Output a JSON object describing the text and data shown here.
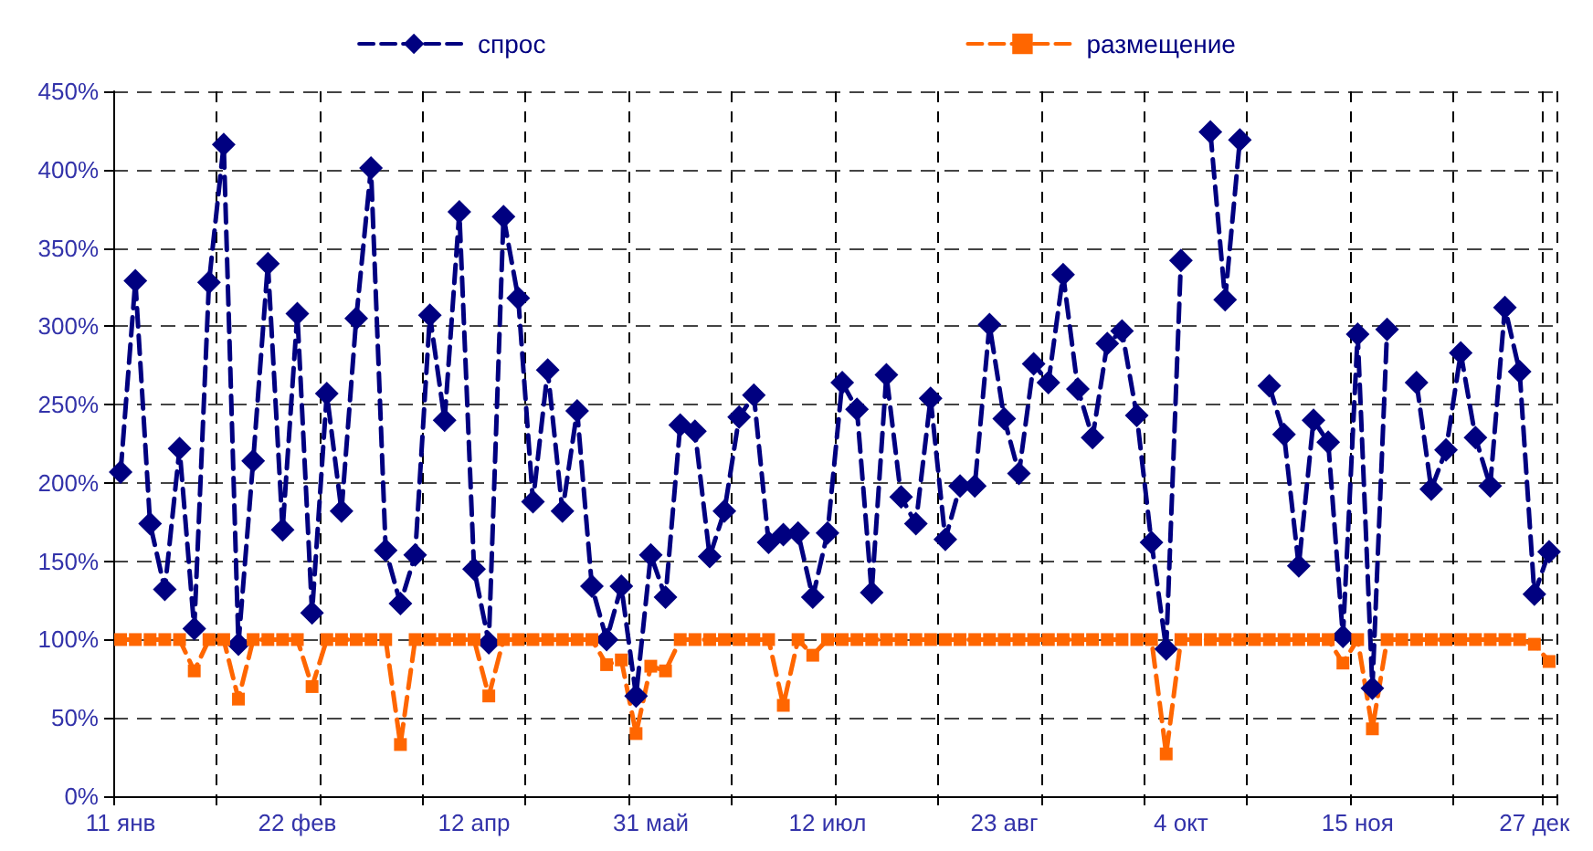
{
  "chart_data": {
    "type": "line",
    "categories": [
      "11 янв",
      null,
      null,
      null,
      null,
      null,
      null,
      null,
      null,
      null,
      null,
      null,
      "22 фев",
      null,
      null,
      null,
      null,
      null,
      null,
      null,
      null,
      null,
      null,
      null,
      "12 апр",
      null,
      null,
      null,
      null,
      null,
      null,
      null,
      null,
      null,
      null,
      null,
      "31 май",
      null,
      null,
      null,
      null,
      null,
      null,
      null,
      null,
      null,
      null,
      null,
      "12 июл",
      null,
      null,
      null,
      null,
      null,
      null,
      null,
      null,
      null,
      null,
      null,
      "23 авг",
      null,
      null,
      null,
      null,
      null,
      null,
      null,
      null,
      null,
      null,
      null,
      "4 окт",
      null,
      null,
      null,
      null,
      null,
      null,
      null,
      null,
      null,
      null,
      null,
      "15 ноя",
      null,
      null,
      null,
      null,
      null,
      null,
      null,
      null,
      null,
      null,
      null,
      "27 дек",
      null
    ],
    "series": [
      {
        "name": "спрос",
        "color": "#000080",
        "marker": "diamond",
        "values": [
          207,
          329,
          174,
          132,
          222,
          107,
          328,
          416,
          97,
          214,
          340,
          170,
          308,
          117,
          257,
          182,
          305,
          401,
          157,
          123,
          154,
          307,
          240,
          373,
          145,
          98,
          370,
          318,
          188,
          272,
          182,
          246,
          134,
          100,
          134,
          64,
          154,
          127,
          237,
          233,
          153,
          182,
          242,
          256,
          162,
          167,
          168,
          127,
          168,
          264,
          247,
          130,
          269,
          191,
          174,
          254,
          164,
          198,
          198,
          301,
          241,
          206,
          276,
          264,
          333,
          260,
          229,
          289,
          297,
          243,
          162,
          94,
          342,
          null,
          424,
          317,
          419,
          null,
          262,
          231,
          147,
          240,
          226,
          102,
          295,
          69,
          298,
          null,
          264,
          196,
          221,
          283,
          229,
          198,
          312,
          271,
          129,
          156
        ]
      },
      {
        "name": "размещение",
        "color": "#ff6600",
        "marker": "square",
        "values": [
          100,
          100,
          100,
          100,
          100,
          80,
          100,
          100,
          62,
          100,
          100,
          100,
          100,
          70,
          100,
          100,
          100,
          100,
          100,
          33,
          100,
          100,
          100,
          100,
          100,
          64,
          100,
          100,
          100,
          100,
          100,
          100,
          100,
          84,
          87,
          40,
          83,
          80,
          100,
          100,
          100,
          100,
          100,
          100,
          100,
          58,
          100,
          90,
          100,
          100,
          100,
          100,
          100,
          100,
          100,
          100,
          100,
          100,
          100,
          100,
          100,
          100,
          100,
          100,
          100,
          100,
          100,
          100,
          100,
          100,
          100,
          27,
          100,
          100,
          100,
          100,
          100,
          100,
          100,
          100,
          100,
          100,
          100,
          85,
          100,
          43,
          100,
          100,
          100,
          100,
          100,
          100,
          100,
          100,
          100,
          100,
          97,
          86
        ]
      }
    ],
    "ylim": [
      0,
      450
    ],
    "yticks": [
      {
        "value": 0,
        "label": "0%"
      },
      {
        "value": 50,
        "label": "50%"
      },
      {
        "value": 100,
        "label": "100%"
      },
      {
        "value": 150,
        "label": "150%"
      },
      {
        "value": 200,
        "label": "200%"
      },
      {
        "value": 250,
        "label": "250%"
      },
      {
        "value": 300,
        "label": "300%"
      },
      {
        "value": 350,
        "label": "350%"
      },
      {
        "value": 400,
        "label": "400%"
      },
      {
        "value": 450,
        "label": "450%"
      }
    ],
    "grid": true,
    "legend": "top",
    "line_style": "dashed"
  }
}
